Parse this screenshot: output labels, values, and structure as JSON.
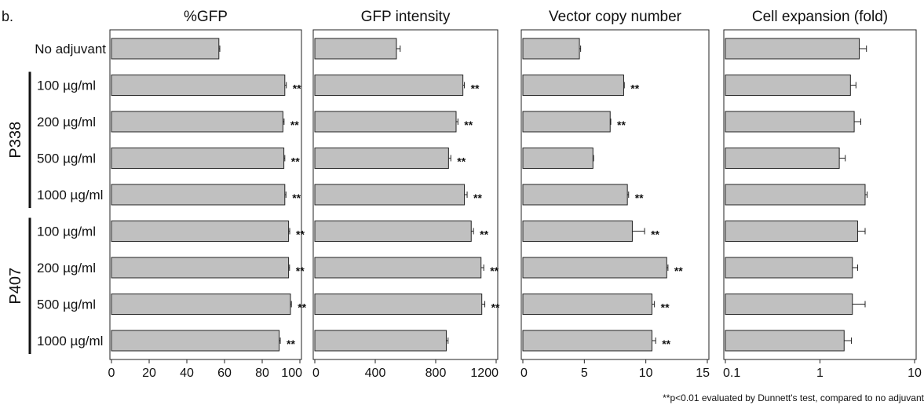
{
  "figure_label": "b.",
  "footnote": "**p<0.01 evaluated by Dunnett's test, compared to no adjuvant",
  "chart_data": {
    "type": "bar",
    "orientation": "horizontal",
    "categories": [
      "No adjuvant",
      "100 µg/ml",
      "200 µg/ml",
      "500 µg/ml",
      "1000 µg/ml",
      "100 µg/ml",
      "200 µg/ml",
      "500 µg/ml",
      "1000 µg/ml"
    ],
    "groups": [
      {
        "label": "P338",
        "first": 1,
        "last": 4
      },
      {
        "label": "P407",
        "first": 5,
        "last": 8
      }
    ],
    "significance_marker": "**",
    "panels": [
      {
        "title": "%GFP",
        "xscale": "linear",
        "xlim": [
          0,
          100
        ],
        "ticks": [
          0,
          20,
          40,
          60,
          80,
          100
        ],
        "tick_labels": [
          "0",
          "20",
          "40",
          "60",
          "80",
          "100"
        ],
        "values": [
          57,
          92,
          91,
          91.5,
          92,
          94,
          94,
          95,
          89
        ],
        "errors": [
          0.5,
          0.8,
          0.6,
          0.5,
          0.6,
          0.6,
          0.5,
          0.5,
          0.6
        ],
        "significant": [
          false,
          true,
          true,
          true,
          true,
          true,
          true,
          true,
          true
        ]
      },
      {
        "title": "GFP intensity",
        "xscale": "linear",
        "xlim": [
          0,
          1200
        ],
        "ticks": [
          0,
          400,
          800,
          1200
        ],
        "tick_labels": [
          "0",
          "400",
          "800",
          "1200"
        ],
        "values": [
          540,
          980,
          935,
          885,
          990,
          1035,
          1100,
          1105,
          870
        ],
        "errors": [
          25,
          10,
          12,
          15,
          18,
          15,
          18,
          20,
          12
        ],
        "significant": [
          false,
          true,
          true,
          true,
          true,
          true,
          true,
          true,
          false
        ]
      },
      {
        "title": "Vector copy number",
        "xscale": "linear",
        "xlim": [
          0,
          15
        ],
        "ticks": [
          0,
          5,
          10,
          15
        ],
        "tick_labels": [
          "0",
          "5",
          "10",
          "15"
        ],
        "values": [
          4.6,
          8.2,
          7.1,
          5.7,
          8.5,
          8.9,
          11.7,
          10.5,
          10.5
        ],
        "errors": [
          0.1,
          0.05,
          0.05,
          0.05,
          0.1,
          1.0,
          0.1,
          0.2,
          0.3
        ],
        "significant": [
          false,
          true,
          true,
          false,
          true,
          true,
          true,
          true,
          true
        ]
      },
      {
        "title": "Cell expansion (fold)",
        "xscale": "log",
        "xlim": [
          0.1,
          10
        ],
        "ticks": [
          0.1,
          1,
          10
        ],
        "tick_labels": [
          "0.1",
          "1",
          "10"
        ],
        "values": [
          2.6,
          2.1,
          2.3,
          1.6,
          3.0,
          2.5,
          2.2,
          2.2,
          1.8
        ],
        "errors": [
          0.5,
          0.3,
          0.4,
          0.25,
          0.15,
          0.5,
          0.3,
          0.8,
          0.35
        ],
        "significant": [
          false,
          false,
          false,
          false,
          false,
          false,
          false,
          false,
          false
        ]
      }
    ]
  }
}
